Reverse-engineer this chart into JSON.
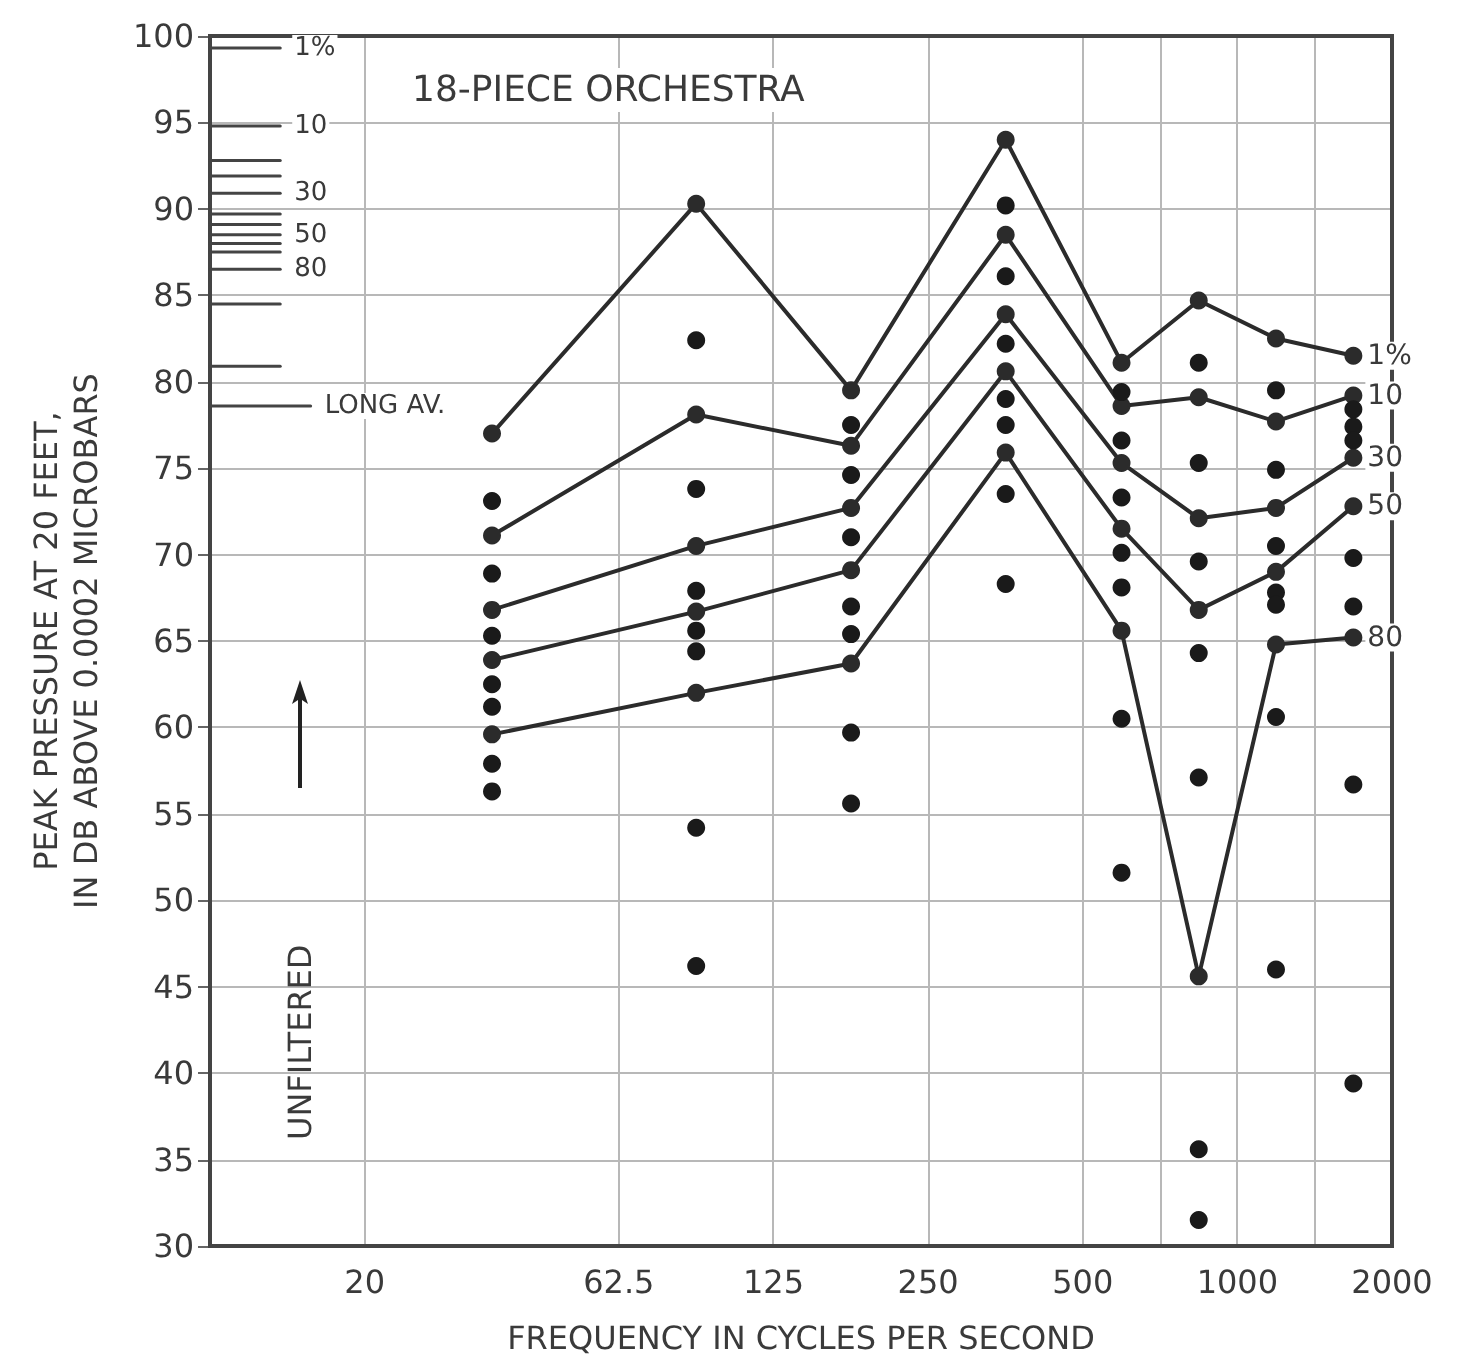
{
  "chart_data": {
    "type": "line",
    "title": "18-PIECE ORCHESTRA",
    "xlabel": "FREQUENCY IN CYCLES PER SECOND",
    "ylabel": "PEAK PRESSURE AT 20 FEET,\nIN DB ABOVE 0.0002 MICROBARS",
    "annotations": [
      "UNFILTERED"
    ],
    "x": [
      35.4,
      88.4,
      177,
      354,
      595,
      841,
      1189,
      1682
    ],
    "xlim": [
      10,
      2000
    ],
    "xticks": [
      20,
      62.5,
      125,
      250,
      500,
      {
        "value": 707,
        "label": null
      },
      1000,
      {
        "value": 1414,
        "label": null
      },
      2000
    ],
    "ylim": [
      30,
      100
    ],
    "yticks": [
      30,
      35,
      40,
      45,
      50,
      55,
      60,
      65,
      70,
      75,
      80,
      85,
      90,
      95,
      100
    ],
    "log": "x",
    "grid": true,
    "marker": "circle",
    "line_style": "solid",
    "series": [
      {
        "name": "1%",
        "marker": "none",
        "color": "#444444",
        "x": [
          10,
          13.7
        ],
        "values": [
          99.3,
          99.3
        ]
      },
      {
        "name": "10",
        "marker": "none",
        "color": "#444444",
        "x": [
          10,
          13.7
        ],
        "values": [
          94.8,
          94.8
        ]
      },
      {
        "marker": "none",
        "color": "#444444",
        "x": [
          10,
          13.7
        ],
        "values": [
          92.8,
          92.8
        ]
      },
      {
        "marker": "none",
        "color": "#444444",
        "x": [
          10,
          13.7
        ],
        "values": [
          91.9,
          91.9
        ]
      },
      {
        "name": "30",
        "marker": "none",
        "color": "#444444",
        "x": [
          10,
          13.7
        ],
        "values": [
          90.9,
          90.9
        ]
      },
      {
        "marker": "none",
        "color": "#444444",
        "x": [
          10,
          13.7
        ],
        "values": [
          89.7,
          89.7
        ]
      },
      {
        "marker": "none",
        "color": "#444444",
        "x": [
          10,
          13.7
        ],
        "values": [
          89.1,
          89.1
        ]
      },
      {
        "name": "50",
        "marker": "none",
        "color": "#444444",
        "x": [
          10,
          13.7
        ],
        "values": [
          88.5,
          88.5
        ]
      },
      {
        "marker": "none",
        "color": "#444444",
        "x": [
          10,
          13.7
        ],
        "values": [
          88.0,
          88.0
        ]
      },
      {
        "marker": "none",
        "color": "#444444",
        "x": [
          10,
          13.7
        ],
        "values": [
          87.5,
          87.5
        ]
      },
      {
        "name": "80",
        "marker": "none",
        "color": "#444444",
        "x": [
          10,
          13.7
        ],
        "values": [
          86.5,
          86.5
        ]
      },
      {
        "marker": "none",
        "color": "#444444",
        "x": [
          10,
          13.7
        ],
        "values": [
          84.5,
          84.5
        ]
      },
      {
        "marker": "none",
        "color": "#444444",
        "x": [
          10,
          13.7
        ],
        "values": [
          80.9,
          80.9
        ]
      },
      {
        "name": "LONG AV.",
        "marker": "none",
        "color": "#444444",
        "x": [
          10,
          15.7
        ],
        "values": [
          78.6,
          78.6
        ]
      },
      {
        "name": "1%",
        "color": "#2b2b2b",
        "values": [
          77.0,
          90.3,
          79.5,
          94.0,
          81.1,
          84.7,
          82.5,
          81.5
        ]
      },
      {
        "name": "10",
        "color": "#2b2b2b",
        "values": [
          71.1,
          78.1,
          76.3,
          88.5,
          78.6,
          79.1,
          77.7,
          79.2
        ]
      },
      {
        "name": "30",
        "color": "#2b2b2b",
        "values": [
          66.8,
          70.5,
          72.7,
          83.9,
          75.3,
          72.1,
          72.7,
          75.6
        ]
      },
      {
        "name": "50",
        "color": "#2b2b2b",
        "values": [
          63.9,
          66.7,
          69.1,
          80.6,
          71.5,
          66.8,
          69.0,
          72.8
        ]
      },
      {
        "name": "80",
        "color": "#2b2b2b",
        "values": [
          59.6,
          62.0,
          63.7,
          75.9,
          65.6,
          45.6,
          64.8,
          65.2
        ]
      },
      {
        "type": "scatter",
        "color": "#1a1a1a",
        "x": [
          35.4,
          35.4,
          35.4,
          35.4,
          35.4,
          35.4,
          35.4,
          88.4,
          88.4,
          88.4,
          88.4,
          88.4,
          88.4,
          88.4,
          177,
          177,
          177,
          177,
          177,
          177,
          177,
          354,
          354,
          354,
          354,
          354,
          354,
          354,
          595,
          595,
          595,
          595,
          595,
          595,
          595,
          841,
          841,
          841,
          841,
          841,
          841,
          841,
          1189,
          1189,
          1189,
          1189,
          1189,
          1189,
          1189,
          1682,
          1682,
          1682,
          1682,
          1682,
          1682,
          1682
        ],
        "values": [
          73.1,
          68.9,
          65.3,
          62.5,
          61.2,
          57.9,
          56.3,
          82.4,
          73.8,
          67.9,
          65.6,
          64.4,
          54.2,
          46.2,
          77.5,
          74.6,
          71.0,
          67.0,
          65.4,
          59.7,
          55.6,
          90.2,
          86.1,
          82.2,
          79.0,
          77.5,
          73.5,
          68.3,
          79.4,
          76.6,
          73.3,
          70.1,
          68.1,
          60.5,
          51.6,
          81.1,
          75.3,
          69.6,
          64.3,
          57.1,
          35.6,
          31.5,
          79.5,
          74.9,
          70.5,
          67.8,
          67.1,
          60.6,
          46.0,
          78.4,
          77.4,
          76.6,
          69.8,
          67.0,
          56.7,
          39.4
        ]
      }
    ]
  }
}
